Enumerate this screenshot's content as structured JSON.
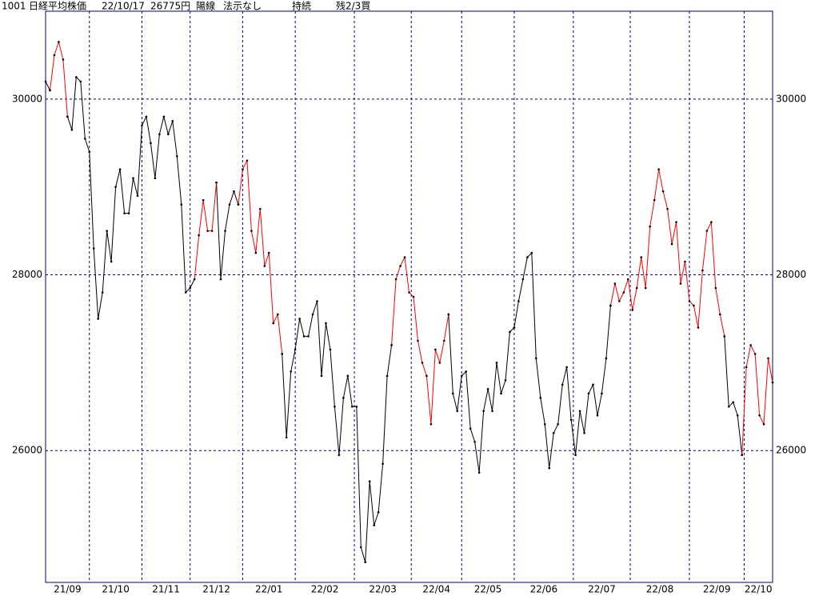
{
  "chart_data": {
    "type": "line",
    "code": "1001",
    "title": "日経平均株価",
    "date": "22/10/17",
    "close_label": "26775円",
    "candle": "陽線",
    "signal": "法示なし",
    "trend": "持続",
    "position": "残2/3買",
    "xlim": [
      0,
      166
    ],
    "xticks": [
      {
        "value": 0,
        "label": "21/09"
      },
      {
        "value": 10,
        "label": "21/10"
      },
      {
        "value": 22,
        "label": "21/11"
      },
      {
        "value": 33,
        "label": "21/12"
      },
      {
        "value": 45,
        "label": "22/01"
      },
      {
        "value": 57,
        "label": "22/02"
      },
      {
        "value": 70.5,
        "label": "22/03"
      },
      {
        "value": 83.5,
        "label": "22/04"
      },
      {
        "value": 95,
        "label": "22/05"
      },
      {
        "value": 107,
        "label": "22/06"
      },
      {
        "value": 120.5,
        "label": "22/07"
      },
      {
        "value": 133.5,
        "label": "22/08"
      },
      {
        "value": 147,
        "label": "22/09"
      },
      {
        "value": 159.5,
        "label": "22/10"
      }
    ],
    "ylim": [
      24500,
      31000
    ],
    "yticks": [
      26000,
      28000,
      30000
    ],
    "grid": true,
    "series": [
      {
        "color": "#000000",
        "values": [
          30200,
          30100,
          null,
          null,
          null,
          29800,
          29650,
          30250,
          30200,
          29550,
          29400,
          28300,
          27500,
          27800,
          28500,
          28150,
          29000,
          29200,
          28700,
          28700,
          29100,
          28900,
          29700,
          29800,
          29500,
          29100,
          29600,
          29800,
          29600,
          29750,
          29350,
          28800,
          27800,
          27850,
          27950,
          null,
          null,
          null,
          null,
          29050,
          27950,
          28500,
          28800,
          28950,
          28800,
          null,
          null,
          null,
          null,
          null,
          null,
          null,
          null,
          null,
          27100,
          26150,
          26900,
          27150,
          27500,
          27300,
          27300,
          27550,
          27700,
          26850,
          27450,
          27150,
          26500,
          25950,
          26600,
          26850,
          26500,
          26500,
          24900,
          24730,
          25650,
          25150,
          25300,
          25850,
          26850,
          27200,
          null,
          null,
          null,
          null,
          null,
          null,
          null,
          null,
          null,
          null,
          null,
          null,
          27550,
          26650,
          26450,
          26850,
          26900,
          26250,
          26100,
          25750,
          26450,
          26700,
          26450,
          27000,
          26650,
          26800,
          27350,
          27400,
          27700,
          27950,
          28200,
          28250,
          27050,
          26600,
          26300,
          25800,
          26200,
          26300,
          26750,
          26950,
          26350,
          25950,
          26450,
          26200,
          26650,
          26750,
          26400,
          26650,
          27050,
          27650,
          null,
          null,
          null,
          null,
          null,
          null,
          null,
          null,
          null,
          null,
          null,
          null,
          null,
          null,
          null,
          null,
          null,
          null,
          null,
          null,
          null,
          null,
          null,
          null,
          null,
          27300,
          26500,
          26550,
          26400,
          25950,
          null,
          null,
          null,
          null,
          null,
          null,
          null
        ]
      },
      {
        "color": "#ff0000",
        "values": [
          null,
          30100,
          30500,
          30650,
          30450,
          29800,
          null,
          null,
          null,
          null,
          null,
          null,
          null,
          null,
          null,
          null,
          null,
          null,
          null,
          null,
          null,
          null,
          null,
          null,
          null,
          null,
          null,
          null,
          null,
          null,
          null,
          null,
          null,
          null,
          27950,
          28450,
          28850,
          28500,
          28500,
          29050,
          null,
          null,
          null,
          null,
          28800,
          29200,
          29300,
          28500,
          28250,
          28750,
          28100,
          28250,
          27450,
          27550,
          27100,
          null,
          null,
          null,
          null,
          null,
          null,
          null,
          null,
          null,
          null,
          null,
          null,
          null,
          null,
          null,
          null,
          null,
          null,
          null,
          null,
          null,
          null,
          null,
          null,
          27200,
          27950,
          28100,
          28200,
          27800,
          27750,
          27250,
          27000,
          26850,
          26300,
          27150,
          27000,
          27250,
          27550,
          null,
          null,
          null,
          null,
          null,
          null,
          null,
          null,
          null,
          null,
          null,
          null,
          null,
          null,
          null,
          null,
          null,
          null,
          null,
          null,
          null,
          null,
          null,
          null,
          null,
          null,
          null,
          null,
          null,
          null,
          null,
          null,
          null,
          null,
          null,
          null,
          27650,
          27900,
          27700,
          27800,
          27950,
          27600,
          27850,
          28200,
          27850,
          28550,
          28850,
          29200,
          28950,
          28750,
          28350,
          28600,
          27900,
          28150,
          27700,
          27650,
          27400,
          28050,
          28500,
          28600,
          27850,
          27550,
          27300,
          null,
          null,
          null,
          25950,
          26950,
          27200,
          27100,
          26400,
          26300,
          27050,
          26775
        ]
      }
    ]
  }
}
